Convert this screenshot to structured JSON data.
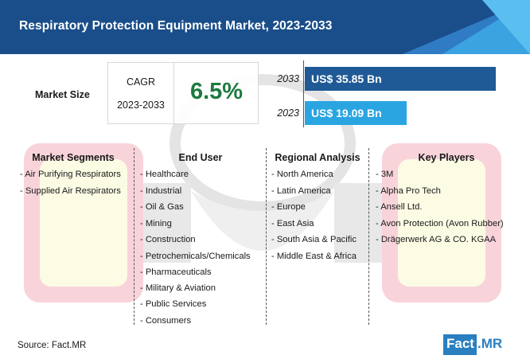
{
  "header": {
    "title": "Respiratory Protection Equipment Market, 2023-2033"
  },
  "market_size": {
    "label": "Market Size",
    "cagr_label": "CAGR",
    "cagr_period": "2023-2033",
    "cagr_value": "6.5%",
    "bars": [
      {
        "year": "2033",
        "value_label": "US$ 35.85 Bn",
        "value": 35.85,
        "color": "#1f5a96"
      },
      {
        "year": "2023",
        "value_label": "US$ 19.09 Bn",
        "value": 19.09,
        "color": "#2aa5e2"
      }
    ]
  },
  "columns": {
    "segments": {
      "heading": "Market Segments",
      "items": [
        "- Air Purifying Respirators",
        "- Supplied Air Respirators"
      ]
    },
    "end_user": {
      "heading": "End User",
      "items": [
        "- Healthcare",
        "- Industrial",
        "- Oil & Gas",
        "- Mining",
        "- Construction",
        "- Petrochemicals/Chemicals",
        "- Pharmaceuticals",
        "- Military & Aviation",
        "- Public Services",
        "- Consumers"
      ]
    },
    "regional": {
      "heading": "Regional Analysis",
      "items": [
        "- North America",
        "- Latin America",
        "- Europe",
        "- East Asia",
        "- South Asia & Pacific",
        "- Middle East & Africa"
      ]
    },
    "players": {
      "heading": "Key Players",
      "items": [
        "- 3M",
        "- Alpha Pro Tech",
        "- Ansell Ltd.",
        "- Avon Protection (Avon Rubber)",
        "- Drägerwerk AG & CO. KGAA"
      ]
    }
  },
  "footer": {
    "source": "Source: Fact.MR",
    "logo_part1": "Fact",
    "logo_part2": ".MR"
  },
  "colors": {
    "header_bg": "#1a4e8a",
    "cagr_green": "#1c7a3f",
    "logo_blue": "#2a7fc0"
  }
}
